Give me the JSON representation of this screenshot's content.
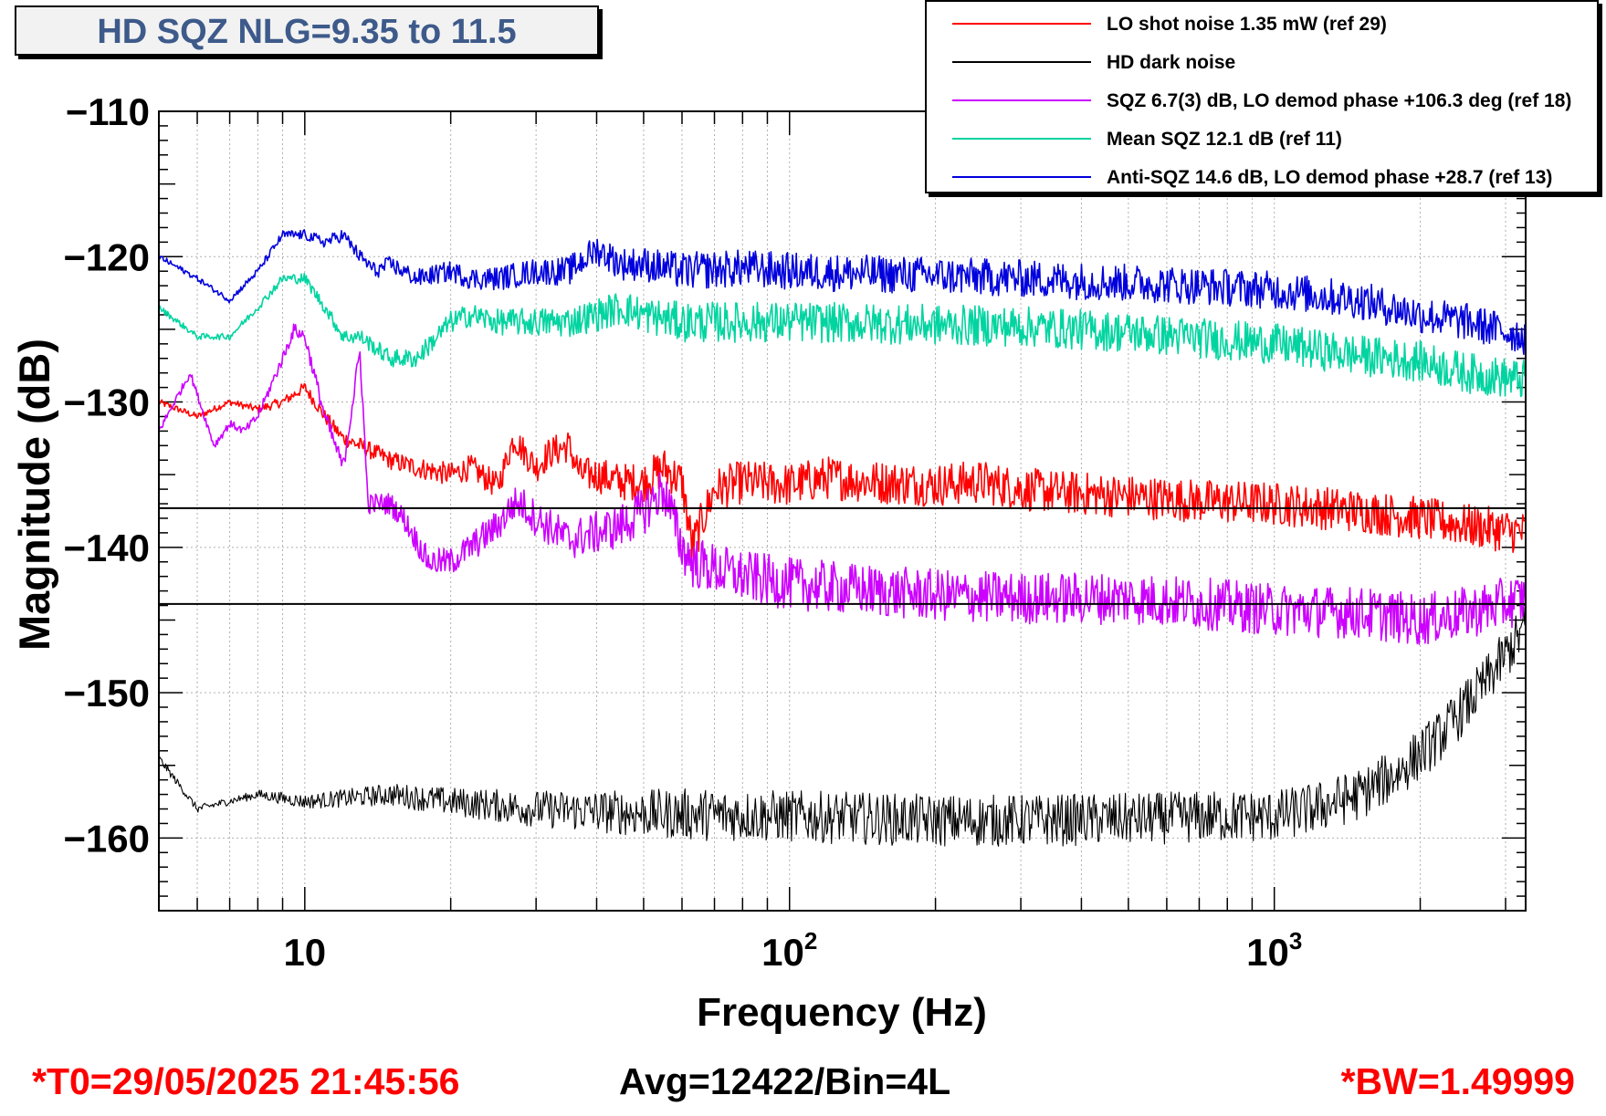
{
  "chart_data": {
    "type": "line",
    "title": "HD SQZ NLG=9.35 to 11.5",
    "xlabel": "Frequency (Hz)",
    "ylabel": "Magnitude (dB)",
    "xscale": "log",
    "xlim": [
      5,
      3300
    ],
    "ylim": [
      -165,
      -110
    ],
    "x_ticks": [
      {
        "value": 10,
        "base": "10",
        "exp": ""
      },
      {
        "value": 100,
        "base": "10",
        "exp": "2"
      },
      {
        "value": 1000,
        "base": "10",
        "exp": "3"
      }
    ],
    "y_ticks": [
      {
        "value": -110,
        "label": "−110"
      },
      {
        "value": -120,
        "label": "−120"
      },
      {
        "value": -130,
        "label": "−130"
      },
      {
        "value": -140,
        "label": "−140"
      },
      {
        "value": -150,
        "label": "−150"
      },
      {
        "value": -160,
        "label": "−160"
      }
    ],
    "grid": true,
    "legend_position": "top-right",
    "horizontal_lines": [
      -137.3,
      -143.9
    ],
    "series": [
      {
        "name": "LO shot noise 1.35 mW (ref 29)",
        "color": "#ff0000",
        "x": [
          5,
          6,
          7,
          8,
          9,
          10,
          11,
          12,
          13,
          15,
          17,
          20,
          22,
          25,
          27,
          30,
          32,
          35,
          37,
          40,
          45,
          50,
          55,
          60,
          63,
          70,
          80,
          100,
          120,
          150,
          200,
          250,
          300,
          400,
          500,
          700,
          1000,
          1500,
          2000,
          2500,
          3300
        ],
        "y": [
          -130,
          -131,
          -130,
          -130.5,
          -130,
          -129,
          -131,
          -132.5,
          -133,
          -134,
          -134.5,
          -135,
          -134.5,
          -135.8,
          -132.5,
          -134.5,
          -133.5,
          -133,
          -135,
          -135,
          -135.5,
          -135.5,
          -134.5,
          -135.5,
          -140,
          -136,
          -135.5,
          -135.7,
          -135.2,
          -135.5,
          -135.7,
          -135.5,
          -136,
          -136.3,
          -136.5,
          -136.8,
          -137,
          -137.5,
          -138,
          -138.5,
          -139
        ],
        "noise": 1.5
      },
      {
        "name": "HD dark noise",
        "color": "#000000",
        "x": [
          5,
          6,
          8,
          10,
          15,
          20,
          30,
          50,
          100,
          200,
          300,
          500,
          800,
          1000,
          1200,
          1500,
          1800,
          2200,
          2700,
          3300
        ],
        "y": [
          -154.5,
          -158,
          -157,
          -157.5,
          -157,
          -157.5,
          -158,
          -158.3,
          -158.5,
          -158.8,
          -158.8,
          -158.7,
          -158.5,
          -158.5,
          -158,
          -157,
          -155.5,
          -153,
          -149.5,
          -145.5
        ],
        "noise": 1.8
      },
      {
        "name": "SQZ 6.7(3) dB, LO demod phase +106.3 deg (ref 18)",
        "color": "#cc00ff",
        "x": [
          5,
          5.8,
          6.5,
          7,
          7.5,
          8,
          9,
          9.5,
          10,
          11,
          12,
          13,
          13.5,
          14,
          15,
          16,
          18,
          20,
          22,
          25,
          27,
          28,
          30,
          35,
          40,
          45,
          50,
          55,
          60,
          63,
          70,
          80,
          100,
          150,
          200,
          300,
          500,
          800,
          1000,
          1500,
          2000,
          2500,
          3300
        ],
        "y": [
          -132,
          -128,
          -133,
          -131.5,
          -132,
          -131,
          -127,
          -125,
          -125.5,
          -131,
          -134.5,
          -126.5,
          -137,
          -137,
          -137,
          -138,
          -141,
          -141,
          -140,
          -138.5,
          -137,
          -137,
          -138,
          -139.5,
          -139,
          -138.5,
          -137.5,
          -136,
          -140,
          -141,
          -141.5,
          -142,
          -142.5,
          -143,
          -143.3,
          -143.5,
          -143.5,
          -144,
          -144.3,
          -144.5,
          -145,
          -144.5,
          -143.5
        ],
        "noise": 1.8
      },
      {
        "name": "Mean SQZ 12.1 dB (ref 11)",
        "color": "#00d4a0",
        "x": [
          5,
          6,
          7,
          8,
          9,
          10,
          11,
          12,
          13,
          15,
          17,
          20,
          22,
          25,
          30,
          35,
          40,
          45,
          50,
          60,
          80,
          100,
          150,
          200,
          300,
          500,
          700,
          1000,
          1500,
          2000,
          2500,
          3300
        ],
        "y": [
          -123.5,
          -125.5,
          -125.5,
          -123.5,
          -121.5,
          -121.5,
          -123.5,
          -125.5,
          -125.5,
          -127,
          -127,
          -124.5,
          -124,
          -124.5,
          -124.5,
          -124.5,
          -124,
          -123.5,
          -124,
          -124.5,
          -124.5,
          -124.5,
          -124.6,
          -124.7,
          -124.8,
          -125.2,
          -125.6,
          -126,
          -126.8,
          -127.2,
          -128,
          -128.5
        ],
        "noise": 1.4
      },
      {
        "name": "Anti-SQZ 14.6 dB, LO demod phase +28.7 (ref 13)",
        "color": "#0000dd",
        "x": [
          5,
          6,
          7,
          8,
          9,
          10,
          11,
          12,
          13,
          14,
          15,
          17,
          20,
          22,
          25,
          30,
          35,
          40,
          45,
          50,
          60,
          80,
          100,
          150,
          200,
          300,
          500,
          700,
          1000,
          1500,
          2000,
          2500,
          3300
        ],
        "y": [
          -120,
          -121.5,
          -123,
          -121,
          -118.5,
          -118.5,
          -119,
          -118.5,
          -120,
          -121,
          -120.5,
          -121.5,
          -121,
          -121.5,
          -121.5,
          -121,
          -121,
          -119.5,
          -120.5,
          -120.5,
          -121,
          -120.8,
          -121,
          -121.2,
          -121.3,
          -121.5,
          -121.8,
          -122,
          -122.3,
          -123,
          -124,
          -124.5,
          -125.5
        ],
        "noise": 1.3
      }
    ]
  },
  "footer": {
    "t0": "*T0=29/05/2025 21:45:56",
    "avg": "Avg=12422/Bin=4L",
    "bw": "*BW=1.49999"
  }
}
